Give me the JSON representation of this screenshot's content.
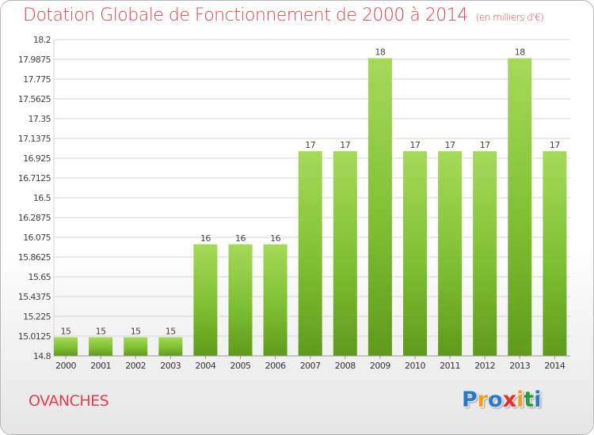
{
  "header": {
    "title": "Dotation Globale de Fonctionnement de 2000 à 2014",
    "unit": "(en milliers d'€)"
  },
  "footer": {
    "commune": "OVANCHES",
    "logo_letters": [
      "P",
      "r",
      "o",
      "x",
      "i",
      "t",
      "i"
    ],
    "logo_colors": [
      "#2a78c8",
      "#f0a020",
      "#2a78c8",
      "#e03030",
      "#f0a020",
      "#2a9a40",
      "#2a78c8"
    ]
  },
  "chart_data": {
    "type": "bar",
    "categories": [
      "2000",
      "2001",
      "2002",
      "2003",
      "2004",
      "2005",
      "2006",
      "2007",
      "2008",
      "2009",
      "2010",
      "2011",
      "2012",
      "2013",
      "2014"
    ],
    "values": [
      15,
      15,
      15,
      15,
      16,
      16,
      16,
      17,
      17,
      18,
      17,
      17,
      17,
      18,
      17
    ],
    "data_labels": [
      "15",
      "15",
      "15",
      "15",
      "16",
      "16",
      "16",
      "17",
      "17",
      "18",
      "17",
      "17",
      "17",
      "18",
      "17"
    ],
    "ylim": [
      14.8,
      18.2
    ],
    "y_ticks": [
      "14.8",
      "15.0125",
      "15.225",
      "15.4375",
      "15.65",
      "15.8625",
      "16.075",
      "16.2875",
      "16.5",
      "16.7125",
      "16.925",
      "17.1375",
      "17.35",
      "17.5625",
      "17.775",
      "17.9875",
      "18.2"
    ],
    "y_tick_values": [
      14.8,
      15.0125,
      15.225,
      15.4375,
      15.65,
      15.8625,
      16.075,
      16.2875,
      16.5,
      16.7125,
      16.925,
      17.1375,
      17.35,
      17.5625,
      17.775,
      17.9875,
      18.2
    ],
    "grid": true,
    "bar_color": "#7fc032",
    "bar_color_light": "#a6d95a",
    "bar_color_dark": "#5f9a1c"
  }
}
